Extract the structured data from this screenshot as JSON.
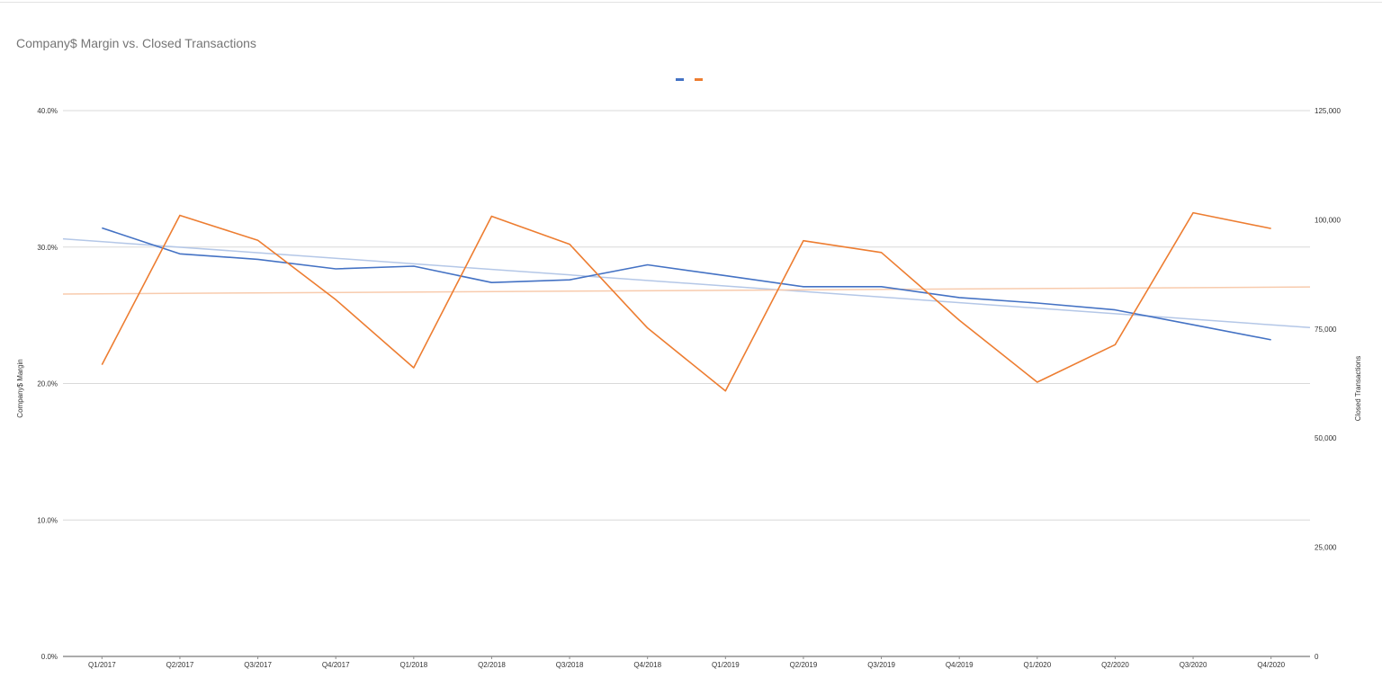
{
  "chart_data": {
    "type": "line",
    "title": "Company$ Margin vs. Closed Transactions",
    "ylabel": "Company$ Margin",
    "y2label": "Closed Transactions",
    "categories": [
      "Q1/2017",
      "Q2/2017",
      "Q3/2017",
      "Q4/2017",
      "Q1/2018",
      "Q2/2018",
      "Q3/2018",
      "Q4/2018",
      "Q1/2019",
      "Q2/2019",
      "Q3/2019",
      "Q4/2019",
      "Q1/2020",
      "Q2/2020",
      "Q3/2020",
      "Q4/2020"
    ],
    "ylim": [
      0,
      0.4
    ],
    "y2lim": [
      0,
      125000
    ],
    "yticks": [
      {
        "value": 0,
        "label": "0.0%"
      },
      {
        "value": 0.1,
        "label": "10.0%"
      },
      {
        "value": 0.2,
        "label": "20.0%"
      },
      {
        "value": 0.3,
        "label": "30.0%"
      },
      {
        "value": 0.4,
        "label": "40.0%"
      }
    ],
    "y2ticks": [
      {
        "value": 0,
        "label": "0"
      },
      {
        "value": 25000,
        "label": "25,000"
      },
      {
        "value": 50000,
        "label": "50,000"
      },
      {
        "value": 75000,
        "label": "75,000"
      },
      {
        "value": 100000,
        "label": "100,000"
      },
      {
        "value": 125000,
        "label": "125,000"
      }
    ],
    "grid": true,
    "legend": "top-center",
    "series": [
      {
        "axis": "left",
        "color": "#4472c4",
        "values": [
          0.314,
          0.295,
          0.291,
          0.284,
          0.286,
          0.274,
          0.276,
          0.287,
          0.279,
          0.271,
          0.271,
          0.263,
          0.259,
          0.254,
          0.243,
          0.232
        ]
      },
      {
        "axis": "right",
        "color": "#ed7d31",
        "values": [
          66800,
          101000,
          95300,
          81700,
          66100,
          100800,
          94400,
          75200,
          60800,
          95200,
          92500,
          77000,
          62800,
          71400,
          101600,
          98000
        ]
      }
    ],
    "trendlines": [
      {
        "series": 0,
        "color": "#b4c7e7",
        "start": 0.306,
        "end": 0.241
      },
      {
        "series": 1,
        "color": "#f8cbad",
        "start": 83000,
        "end": 84600
      }
    ]
  }
}
